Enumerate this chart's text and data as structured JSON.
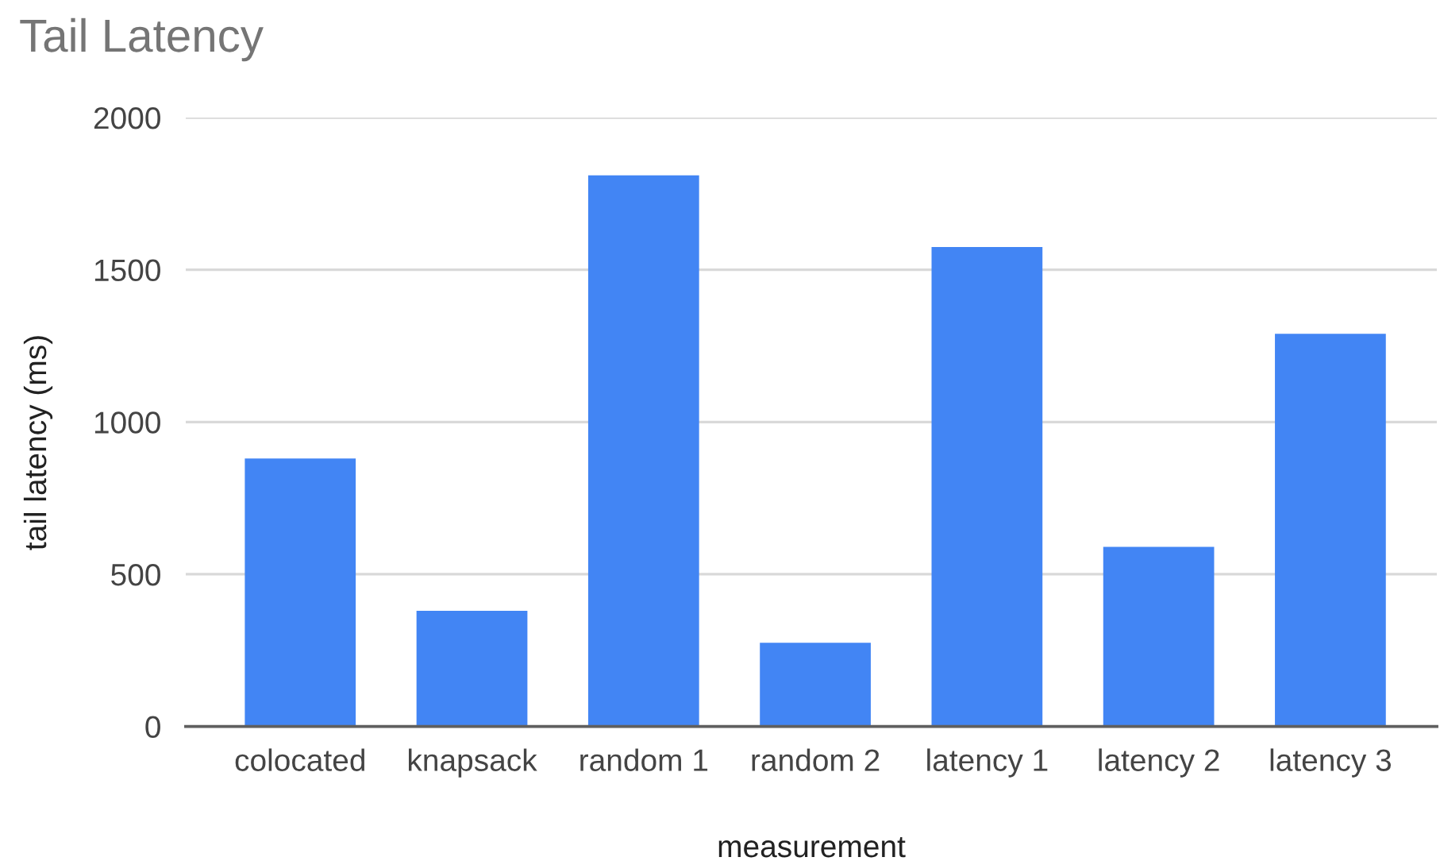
{
  "chart_data": {
    "type": "bar",
    "title": "Tail Latency",
    "xlabel": "measurement",
    "ylabel": "tail latency (ms)",
    "categories": [
      "colocated",
      "knapsack",
      "random 1",
      "random 2",
      "latency 1",
      "latency 2",
      "latency 3"
    ],
    "values": [
      880,
      380,
      1810,
      275,
      1575,
      590,
      1290
    ],
    "color": "#4285f4",
    "ylim": [
      0,
      2000
    ],
    "yticks": [
      0,
      500,
      1000,
      1500,
      2000
    ],
    "grid": "y"
  }
}
